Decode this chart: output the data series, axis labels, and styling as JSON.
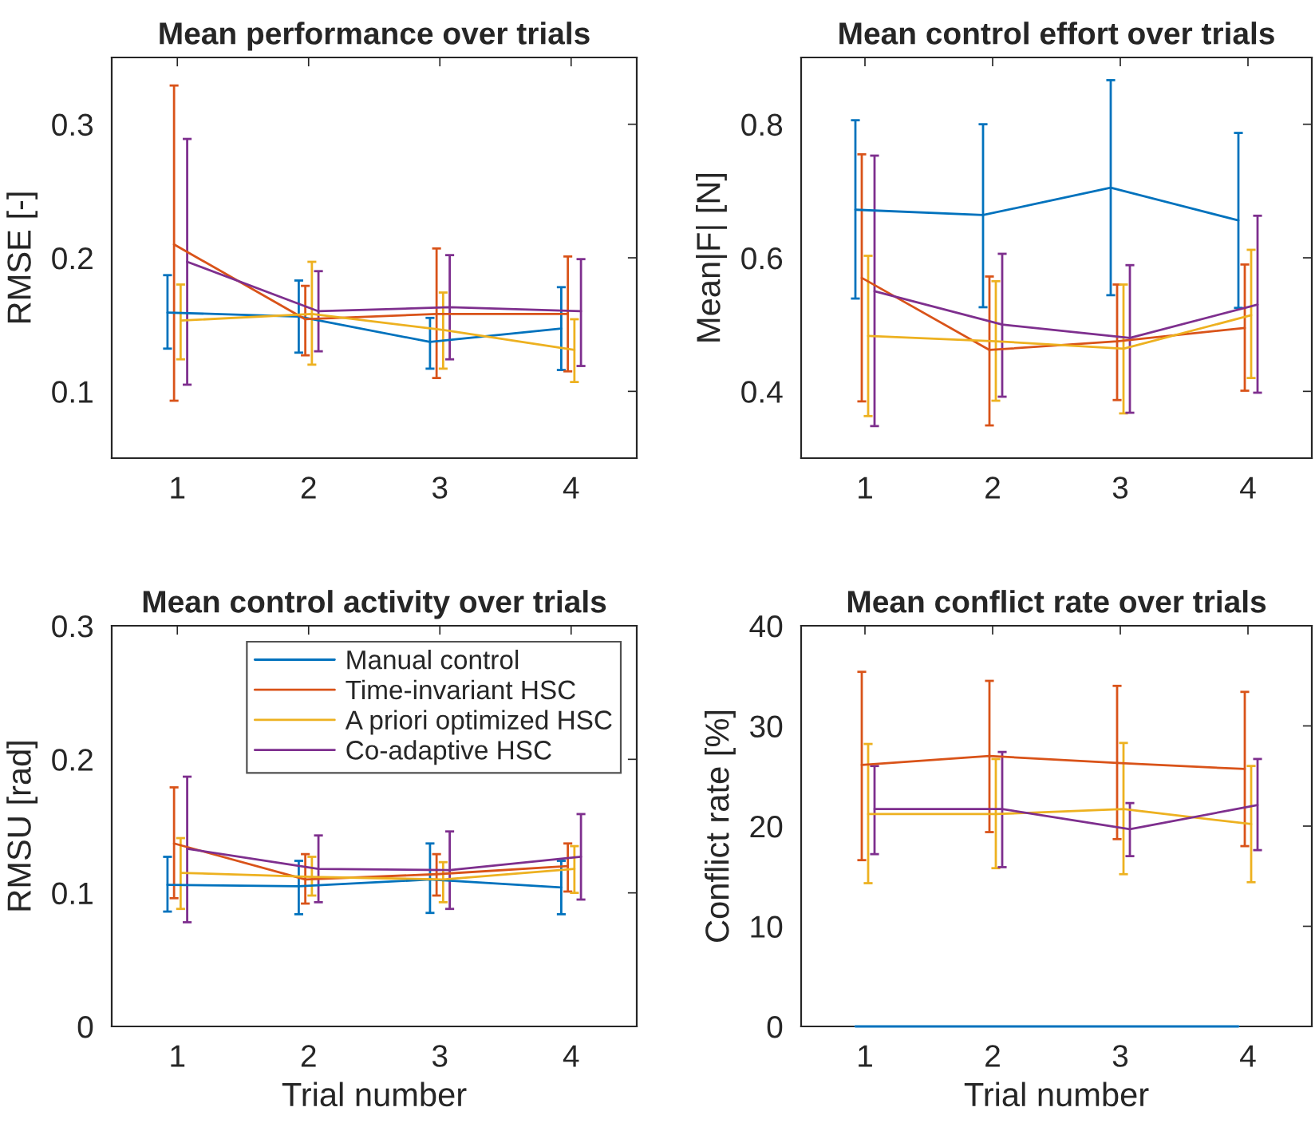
{
  "chart_data": [
    {
      "type": "line",
      "title": "Mean performance over trials",
      "ylabel": "RMSE [-]",
      "xlim": [
        0.5,
        4.5
      ],
      "xticks": [
        1,
        2,
        3,
        4
      ],
      "ylim": [
        0.05,
        0.35
      ],
      "yticks": [
        0.1,
        0.2,
        0.3
      ],
      "grid": false,
      "legend": false,
      "marker": "none",
      "series": [
        {
          "color": "#0072bd",
          "x": [
            0.925,
            1.925,
            2.925,
            3.925
          ],
          "values": [
            0.159,
            0.156,
            0.137,
            0.147
          ],
          "errors": [
            [
              0.132,
              0.187
            ],
            [
              0.129,
              0.183
            ],
            [
              0.117,
              0.155
            ],
            [
              0.116,
              0.178
            ]
          ]
        },
        {
          "color": "#d95319",
          "x": [
            0.975,
            1.975,
            2.975,
            3.975
          ],
          "values": [
            0.21,
            0.154,
            0.158,
            0.158
          ],
          "errors": [
            [
              0.093,
              0.329
            ],
            [
              0.127,
              0.179
            ],
            [
              0.11,
              0.207
            ],
            [
              0.115,
              0.201
            ]
          ]
        },
        {
          "color": "#edb120",
          "x": [
            1.025,
            2.025,
            3.025,
            4.025
          ],
          "values": [
            0.153,
            0.158,
            0.146,
            0.131
          ],
          "errors": [
            [
              0.124,
              0.18
            ],
            [
              0.12,
              0.197
            ],
            [
              0.117,
              0.174
            ],
            [
              0.107,
              0.154
            ]
          ]
        },
        {
          "color": "#7e2f8e",
          "x": [
            1.075,
            2.075,
            3.075,
            4.075
          ],
          "values": [
            0.197,
            0.16,
            0.163,
            0.16
          ],
          "errors": [
            [
              0.105,
              0.289
            ],
            [
              0.13,
              0.19
            ],
            [
              0.124,
              0.202
            ],
            [
              0.119,
              0.199
            ]
          ]
        }
      ]
    },
    {
      "type": "line",
      "title": "Mean control effort over trials",
      "ylabel": "Mean|F| [N]",
      "xlim": [
        0.5,
        4.5
      ],
      "xticks": [
        1,
        2,
        3,
        4
      ],
      "ylim": [
        0.3,
        0.9
      ],
      "yticks": [
        0.4,
        0.6,
        0.8
      ],
      "grid": false,
      "legend": false,
      "marker": "none",
      "series": [
        {
          "color": "#0072bd",
          "x": [
            0.925,
            1.925,
            2.925,
            3.925
          ],
          "values": [
            0.672,
            0.664,
            0.705,
            0.656
          ],
          "errors": [
            [
              0.539,
              0.806
            ],
            [
              0.526,
              0.8
            ],
            [
              0.544,
              0.866
            ],
            [
              0.525,
              0.787
            ]
          ]
        },
        {
          "color": "#d95319",
          "x": [
            0.975,
            1.975,
            2.975,
            3.975
          ],
          "values": [
            0.57,
            0.462,
            0.475,
            0.495
          ],
          "errors": [
            [
              0.385,
              0.755
            ],
            [
              0.349,
              0.572
            ],
            [
              0.387,
              0.56
            ],
            [
              0.401,
              0.59
            ]
          ]
        },
        {
          "color": "#edb120",
          "x": [
            1.025,
            2.025,
            3.025,
            4.025
          ],
          "values": [
            0.483,
            0.475,
            0.464,
            0.514
          ],
          "errors": [
            [
              0.363,
              0.603
            ],
            [
              0.386,
              0.565
            ],
            [
              0.367,
              0.56
            ],
            [
              0.42,
              0.612
            ]
          ]
        },
        {
          "color": "#7e2f8e",
          "x": [
            1.075,
            2.075,
            3.075,
            4.075
          ],
          "values": [
            0.55,
            0.5,
            0.48,
            0.53
          ],
          "errors": [
            [
              0.348,
              0.753
            ],
            [
              0.392,
              0.606
            ],
            [
              0.368,
              0.589
            ],
            [
              0.398,
              0.663
            ]
          ]
        }
      ]
    },
    {
      "type": "line",
      "title": "Mean control activity over trials",
      "xlabel": "Trial number",
      "ylabel": "RMSU [rad]",
      "xlim": [
        0.5,
        4.5
      ],
      "xticks": [
        1,
        2,
        3,
        4
      ],
      "ylim": [
        0,
        0.3
      ],
      "yticks": [
        0,
        0.1,
        0.2,
        0.3
      ],
      "grid": false,
      "legend": "top right",
      "marker": "none",
      "series": [
        {
          "name": "Manual control",
          "color": "#0072bd",
          "x": [
            0.925,
            1.925,
            2.925,
            3.925
          ],
          "values": [
            0.106,
            0.105,
            0.11,
            0.104
          ],
          "errors": [
            [
              0.086,
              0.127
            ],
            [
              0.084,
              0.124
            ],
            [
              0.085,
              0.137
            ],
            [
              0.084,
              0.124
            ]
          ]
        },
        {
          "name": "Time-invariant HSC",
          "color": "#d95319",
          "x": [
            0.975,
            1.975,
            2.975,
            3.975
          ],
          "values": [
            0.137,
            0.11,
            0.114,
            0.12
          ],
          "errors": [
            [
              0.096,
              0.179
            ],
            [
              0.092,
              0.129
            ],
            [
              0.098,
              0.129
            ],
            [
              0.101,
              0.137
            ]
          ]
        },
        {
          "name": "A priori optimized HSC",
          "color": "#edb120",
          "x": [
            1.025,
            2.025,
            3.025,
            4.025
          ],
          "values": [
            0.115,
            0.112,
            0.11,
            0.118
          ],
          "errors": [
            [
              0.088,
              0.141
            ],
            [
              0.098,
              0.127
            ],
            [
              0.093,
              0.123
            ],
            [
              0.1,
              0.135
            ]
          ]
        },
        {
          "name": "Co-adaptive HSC",
          "color": "#7e2f8e",
          "x": [
            1.075,
            2.075,
            3.075,
            4.075
          ],
          "values": [
            0.133,
            0.118,
            0.117,
            0.127
          ],
          "errors": [
            [
              0.078,
              0.187
            ],
            [
              0.093,
              0.143
            ],
            [
              0.088,
              0.146
            ],
            [
              0.095,
              0.159
            ]
          ]
        }
      ]
    },
    {
      "type": "line",
      "title": "Mean conflict rate over trials",
      "xlabel": "Trial number",
      "ylabel": "Conflict rate [%]",
      "xlim": [
        0.5,
        4.5
      ],
      "xticks": [
        1,
        2,
        3,
        4
      ],
      "ylim": [
        0,
        40
      ],
      "yticks": [
        0,
        10,
        20,
        30,
        40
      ],
      "grid": false,
      "legend": false,
      "marker": "none",
      "series": [
        {
          "color": "#0072bd",
          "x": [
            0.925,
            1.925,
            2.925,
            3.925
          ],
          "values": [
            0,
            0,
            0,
            0
          ]
        },
        {
          "color": "#d95319",
          "x": [
            0.975,
            1.975,
            2.975,
            3.975
          ],
          "values": [
            26.1,
            27.0,
            26.3,
            25.7
          ],
          "errors": [
            [
              16.6,
              35.4
            ],
            [
              19.4,
              34.5
            ],
            [
              18.7,
              34.0
            ],
            [
              18.0,
              33.4
            ]
          ]
        },
        {
          "color": "#edb120",
          "x": [
            1.025,
            2.025,
            3.025,
            4.025
          ],
          "values": [
            21.2,
            21.2,
            21.7,
            20.2
          ],
          "errors": [
            [
              14.3,
              28.2
            ],
            [
              15.8,
              26.7
            ],
            [
              15.2,
              28.3
            ],
            [
              14.4,
              26.0
            ]
          ]
        },
        {
          "color": "#7e2f8e",
          "x": [
            1.075,
            2.075,
            3.075,
            4.075
          ],
          "values": [
            21.7,
            21.7,
            19.7,
            22.1
          ],
          "errors": [
            [
              17.2,
              26.0
            ],
            [
              15.9,
              27.4
            ],
            [
              17.0,
              22.3
            ],
            [
              17.6,
              26.7
            ]
          ]
        }
      ]
    }
  ]
}
